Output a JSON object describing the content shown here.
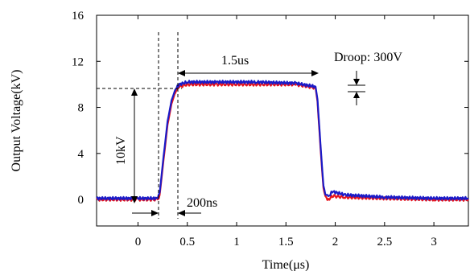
{
  "chart_data": {
    "type": "line",
    "xlabel": "Time(μs)",
    "ylabel": "Output Voltage(kV)",
    "xlim": [
      -0.42,
      3.35
    ],
    "ylim": [
      -2.3,
      16
    ],
    "x_ticks": [
      {
        "value": 0,
        "label": "0"
      },
      {
        "value": 0.5,
        "label": "0.5"
      },
      {
        "value": 1,
        "label": "1"
      },
      {
        "value": 1.5,
        "label": "1.5"
      },
      {
        "value": 2,
        "label": "2"
      },
      {
        "value": 2.5,
        "label": "2.5"
      },
      {
        "value": 3,
        "label": "3"
      }
    ],
    "y_ticks": [
      {
        "value": 0,
        "label": "0"
      },
      {
        "value": 4,
        "label": "4"
      },
      {
        "value": 8,
        "label": "8"
      },
      {
        "value": 12,
        "label": "12"
      },
      {
        "value": 16,
        "label": "16"
      }
    ],
    "series": [
      {
        "color": "#e8141c",
        "x": [
          -0.42,
          0.0,
          0.2,
          0.22,
          0.26,
          0.3,
          0.34,
          0.38,
          0.42,
          0.5,
          0.8,
          1.2,
          1.6,
          1.8,
          1.82,
          1.85,
          1.88,
          1.9,
          1.93,
          1.97,
          2.1,
          2.5,
          3.0,
          3.35
        ],
        "y": [
          0.0,
          0.0,
          0.0,
          0.4,
          3.5,
          6.5,
          8.3,
          9.4,
          9.8,
          10.0,
          10.0,
          10.0,
          10.0,
          9.7,
          8.5,
          4.5,
          1.0,
          0.2,
          0.0,
          0.3,
          0.2,
          0.1,
          0.0,
          0.0
        ]
      },
      {
        "color": "#1a1ac8",
        "x": [
          -0.42,
          0.0,
          0.2,
          0.22,
          0.26,
          0.3,
          0.34,
          0.38,
          0.42,
          0.5,
          0.8,
          1.2,
          1.6,
          1.8,
          1.82,
          1.85,
          1.88,
          1.9,
          1.93,
          1.97,
          2.1,
          2.5,
          3.0,
          3.35
        ],
        "y": [
          0.1,
          0.1,
          0.1,
          0.6,
          3.8,
          6.8,
          8.6,
          9.6,
          10.0,
          10.2,
          10.2,
          10.2,
          10.1,
          9.8,
          8.7,
          4.8,
          1.2,
          0.5,
          0.2,
          0.7,
          0.4,
          0.2,
          0.1,
          0.1
        ]
      }
    ],
    "annotations": {
      "width": "1.5us",
      "droop": "Droop: 300V",
      "amplitude": "10kV",
      "rise": "200ns"
    }
  }
}
